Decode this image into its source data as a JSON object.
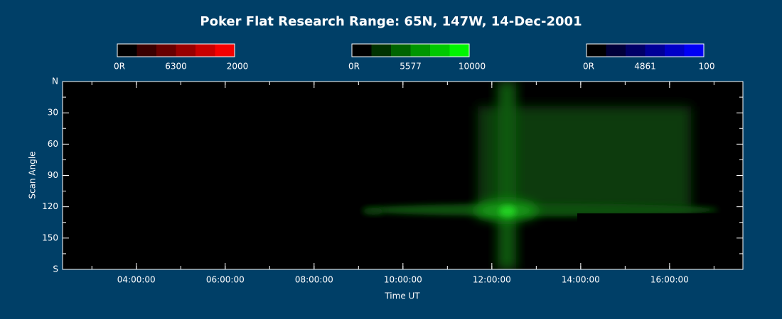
{
  "chart_data": {
    "type": "keogram",
    "title": "Poker Flat Research Range: 65N, 147W, 14-Dec-2001",
    "xlabel": "Time UT",
    "ylabel": "Scan Angle",
    "xlim": [
      2.34,
      17.65
    ],
    "xticks": [
      {
        "value": 4,
        "label": "04:00:00"
      },
      {
        "value": 6,
        "label": "06:00:00"
      },
      {
        "value": 8,
        "label": "08:00:00"
      },
      {
        "value": 10,
        "label": "10:00:00"
      },
      {
        "value": 12,
        "label": "12:00:00"
      },
      {
        "value": 14,
        "label": "14:00:00"
      },
      {
        "value": 16,
        "label": "16:00:00"
      }
    ],
    "ylim": [
      0,
      180
    ],
    "yticks": [
      {
        "value": 0,
        "label": "N"
      },
      30,
      60,
      90,
      120,
      150,
      {
        "value": 180,
        "label": "S"
      }
    ],
    "colorbars": [
      {
        "line": "6300",
        "min_label": "0R",
        "max": 2000,
        "colors": [
          "#000000",
          "#3a0000",
          "#680000",
          "#980000",
          "#c80000",
          "#f50000"
        ]
      },
      {
        "line": "5577",
        "min_label": "0R",
        "max": 10000,
        "colors": [
          "#000000",
          "#003200",
          "#006400",
          "#009600",
          "#00c800",
          "#00f500"
        ]
      },
      {
        "line": "4861",
        "min_label": "0R",
        "max": 100,
        "colors": [
          "#000000",
          "#00003a",
          "#000068",
          "#000098",
          "#0000c8",
          "#0000f5"
        ]
      }
    ]
  }
}
